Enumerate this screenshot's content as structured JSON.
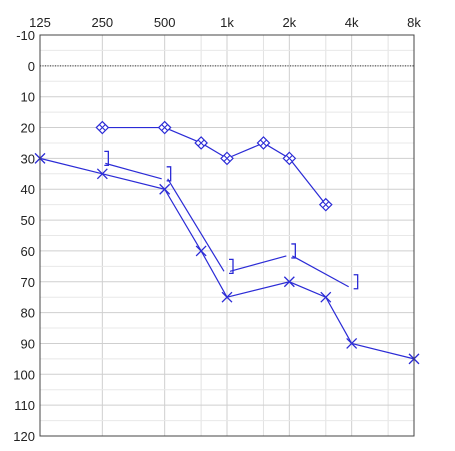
{
  "chart_data": {
    "type": "line",
    "title": "",
    "xlabel": "",
    "ylabel": "",
    "x_scale": "log2",
    "x_ticks": [
      {
        "value": 125,
        "label": "125"
      },
      {
        "value": 250,
        "label": "250"
      },
      {
        "value": 500,
        "label": "500"
      },
      {
        "value": 1000,
        "label": "1k"
      },
      {
        "value": 2000,
        "label": "2k"
      },
      {
        "value": 4000,
        "label": "4k"
      },
      {
        "value": 8000,
        "label": "8k"
      }
    ],
    "x_minor": [
      750,
      1500,
      3000,
      6000
    ],
    "y_ticks": [
      -10,
      0,
      10,
      20,
      30,
      40,
      50,
      60,
      70,
      80,
      90,
      100,
      110,
      120
    ],
    "ylim": [
      -10,
      120
    ],
    "y_inverted": true,
    "grid": true,
    "reference_line": {
      "y": 0,
      "style": "dotted"
    },
    "series_color": "#2b2bd6",
    "series": [
      {
        "marker": "diamond",
        "points": [
          [
            250,
            20
          ],
          [
            500,
            20
          ],
          [
            750,
            25
          ],
          [
            1000,
            30
          ],
          [
            1500,
            25
          ],
          [
            2000,
            30
          ],
          [
            3000,
            45
          ]
        ]
      },
      {
        "marker": "x",
        "points": [
          [
            125,
            30
          ],
          [
            250,
            35
          ],
          [
            500,
            40
          ],
          [
            750,
            60
          ],
          [
            1000,
            75
          ],
          [
            2000,
            70
          ],
          [
            3000,
            75
          ],
          [
            4000,
            90
          ],
          [
            8000,
            95
          ]
        ]
      },
      {
        "marker": "right-bracket",
        "points": [
          [
            250,
            30
          ],
          [
            500,
            35
          ],
          [
            1000,
            65
          ],
          [
            2000,
            60
          ],
          [
            4000,
            70
          ]
        ]
      }
    ]
  }
}
